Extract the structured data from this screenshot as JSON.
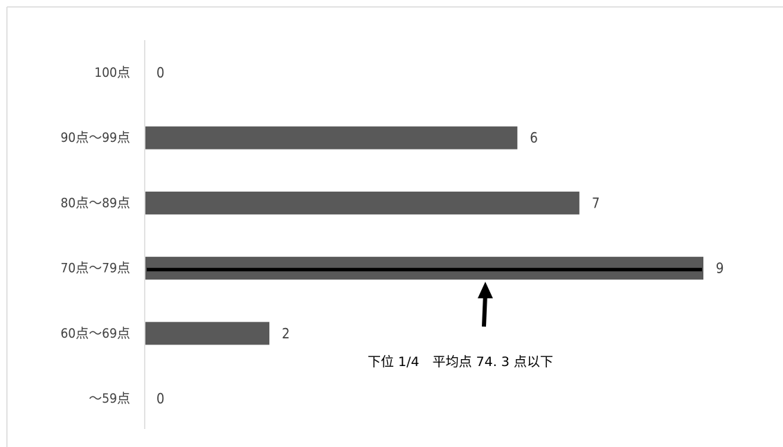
{
  "chart_data": {
    "type": "bar",
    "orientation": "horizontal",
    "categories": [
      "100点",
      "90点～99点",
      "80点～89点",
      "70点～79点",
      "60点～69点",
      "～59点"
    ],
    "values": [
      0,
      6,
      7,
      9,
      2,
      0
    ],
    "title": "",
    "xlabel": "",
    "ylabel": "",
    "xlim": [
      0,
      9
    ],
    "grid": false,
    "data_labels": true,
    "bar_color": "#595959",
    "highlight": {
      "category": "70点～79点",
      "line_color": "#000000"
    },
    "annotation": {
      "text": "下位 1/4　平均点 74. 3 点以下",
      "points_to": "70点～79点",
      "arrow_color": "#000000"
    }
  }
}
